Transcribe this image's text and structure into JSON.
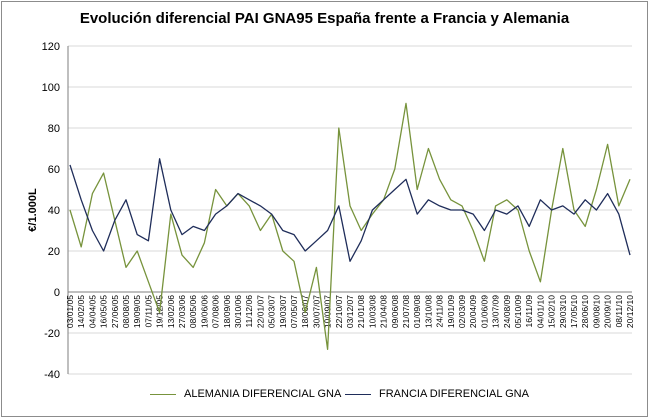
{
  "chart_data": {
    "type": "line",
    "title": "Evolución diferencial PAI GNA95 España frente a Francia y Alemania",
    "ylabel": "€/1.000L",
    "xlabel": "",
    "ylim": [
      -40,
      120
    ],
    "yticks": [
      -40,
      -20,
      0,
      20,
      40,
      60,
      80,
      100,
      120
    ],
    "grid": "horizontal",
    "legend_position": "bottom",
    "x": [
      "03/01/05",
      "14/02/05",
      "04/04/05",
      "16/05/05",
      "27/06/05",
      "08/08/05",
      "19/09/05",
      "07/11/05",
      "19/12/05",
      "13/02/06",
      "27/03/06",
      "08/05/06",
      "19/06/06",
      "07/08/06",
      "18/09/06",
      "30/10/06",
      "11/12/06",
      "22/01/07",
      "05/03/07",
      "19/03/07",
      "07/05/07",
      "18/06/07",
      "30/07/07",
      "10/09/07",
      "22/10/07",
      "03/12/07",
      "21/01/08",
      "10/03/08",
      "21/04/08",
      "09/06/08",
      "21/07/08",
      "01/09/08",
      "13/10/08",
      "24/11/08",
      "19/01/09",
      "02/03/09",
      "20/04/09",
      "01/06/09",
      "13/07/09",
      "24/08/09",
      "05/10/09",
      "16/11/09",
      "04/01/10",
      "15/02/10",
      "29/03/10",
      "17/05/10",
      "28/06/10",
      "09/08/10",
      "20/09/10",
      "08/11/10",
      "20/12/10"
    ],
    "series": [
      {
        "name": "ALEMANIA DIFERENCIAL GNA",
        "color": "#77933c",
        "values": [
          40,
          22,
          48,
          58,
          35,
          12,
          20,
          5,
          -10,
          38,
          18,
          12,
          24,
          50,
          42,
          48,
          42,
          30,
          38,
          20,
          15,
          -10,
          12,
          -28,
          80,
          42,
          30,
          38,
          45,
          60,
          92,
          50,
          70,
          55,
          45,
          42,
          30,
          15,
          42,
          45,
          40,
          20,
          5,
          40,
          70,
          40,
          32,
          50,
          72,
          42,
          55
        ]
      },
      {
        "name": "FRANCIA DIFERENCIAL GNA",
        "color": "#1f2d5a",
        "values": [
          62,
          45,
          30,
          20,
          35,
          45,
          28,
          25,
          65,
          40,
          28,
          32,
          30,
          38,
          42,
          48,
          45,
          42,
          38,
          30,
          28,
          20,
          25,
          30,
          42,
          15,
          25,
          40,
          45,
          50,
          55,
          38,
          45,
          42,
          40,
          40,
          38,
          30,
          40,
          38,
          42,
          32,
          45,
          40,
          42,
          38,
          45,
          40,
          48,
          38,
          18
        ]
      }
    ]
  }
}
